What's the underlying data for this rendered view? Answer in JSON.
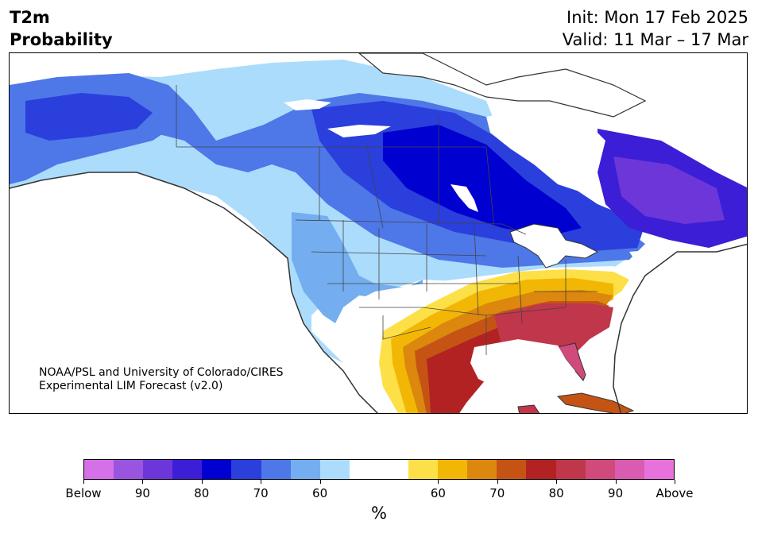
{
  "header": {
    "title_line1": "T2m",
    "title_line2": "Probability",
    "init": "Init: Mon 17 Feb 2025",
    "valid": "Valid: 11 Mar – 17 Mar"
  },
  "credit": {
    "line1": "NOAA/PSL and University of Colorado/CIRES",
    "line2": "Experimental LIM Forecast (v2.0)"
  },
  "colorbar": {
    "colors": [
      "#d670e8",
      "#9a55e0",
      "#6d36d8",
      "#3b1ed6",
      "#0000d0",
      "#2a3fdc",
      "#4e77e8",
      "#74aef0",
      "#acdcfc",
      "#ffffff",
      "#ffffff",
      "#fde047",
      "#f2b705",
      "#dc870e",
      "#c55414",
      "#b22222",
      "#c0364b",
      "#d04a7c",
      "#d95cb0",
      "#e872dc"
    ],
    "tick_labels": [
      "Below",
      "90",
      "80",
      "70",
      "60",
      "60",
      "70",
      "80",
      "90",
      "Above"
    ],
    "unit": "%"
  },
  "map": {
    "description_colors": {
      "below_strong": "#0000d0",
      "below_mid": "#4e77e8",
      "below_weak": "#acdcfc",
      "above_weak": "#fde047",
      "above_mid": "#dc870e",
      "above_strong": "#b22222",
      "above_max": "#c0364b"
    }
  }
}
